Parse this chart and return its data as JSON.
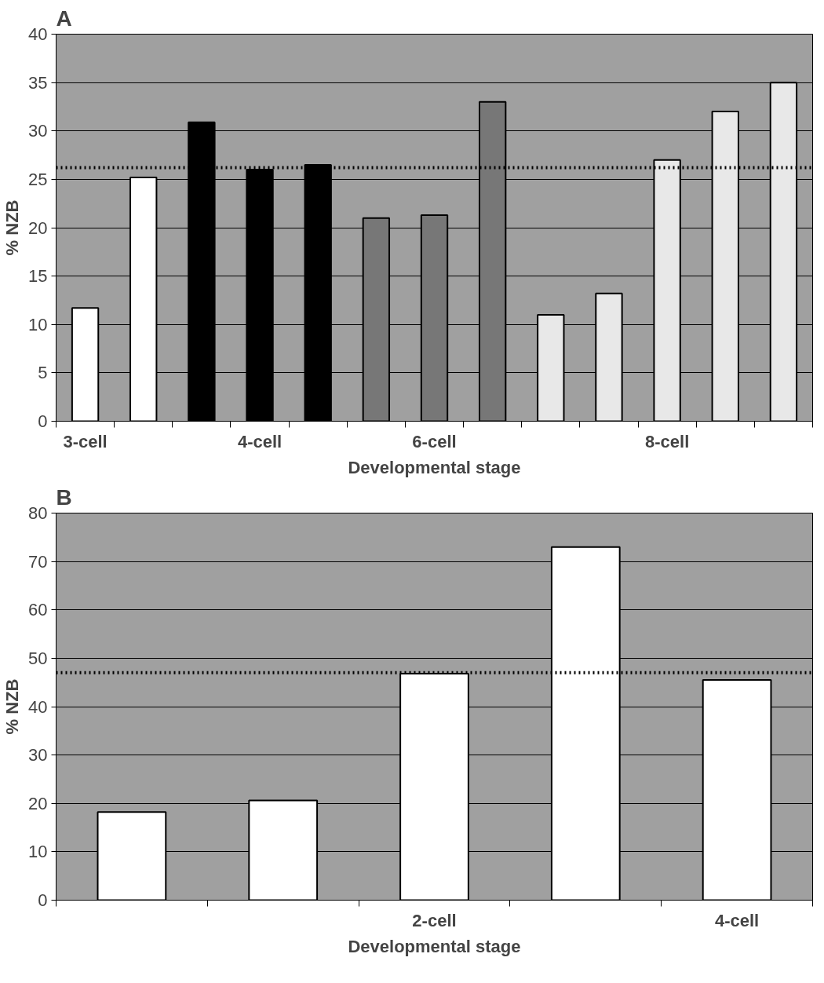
{
  "chart_data": [
    {
      "type": "bar",
      "title": "A",
      "xlabel": "Developmental stage",
      "ylabel": "% NZB",
      "categories": [
        "3-cell",
        null,
        null,
        "4-cell",
        null,
        null,
        "6-cell",
        null,
        null,
        null,
        "8-cell",
        null,
        null
      ],
      "values": [
        11.7,
        25.2,
        30.9,
        26.0,
        26.5,
        21.0,
        21.3,
        33.0,
        11.0,
        13.2,
        27.0,
        32.0,
        35.0
      ],
      "colors": [
        "#ffffff",
        "#ffffff",
        "#000000",
        "#000000",
        "#000000",
        "#777777",
        "#777777",
        "#777777",
        "#e8e8e8",
        "#e8e8e8",
        "#e8e8e8",
        "#e8e8e8",
        "#e8e8e8"
      ],
      "ylim": [
        0,
        40
      ],
      "yticks": [
        0,
        5,
        10,
        15,
        20,
        25,
        30,
        35,
        40
      ],
      "grid": "y",
      "ref_lines": [
        {
          "axis": "y",
          "value": 26.2,
          "label": null,
          "color": "#000000",
          "line_style": "dotted"
        }
      ]
    },
    {
      "type": "bar",
      "title": "B",
      "xlabel": "Developmental stage",
      "ylabel": "% NZB",
      "categories": [
        null,
        null,
        "2-cell",
        null,
        "4-cell"
      ],
      "values": [
        18.2,
        20.6,
        46.8,
        73.0,
        45.5
      ],
      "colors": [
        "#ffffff",
        "#ffffff",
        "#ffffff",
        "#ffffff",
        "#ffffff"
      ],
      "ylim": [
        0,
        80
      ],
      "yticks": [
        0,
        10,
        20,
        30,
        40,
        50,
        60,
        70,
        80
      ],
      "grid": "y",
      "ref_lines": [
        {
          "axis": "y",
          "value": 47,
          "label": null,
          "color": "#000000",
          "line_style": "dotted"
        }
      ]
    }
  ]
}
